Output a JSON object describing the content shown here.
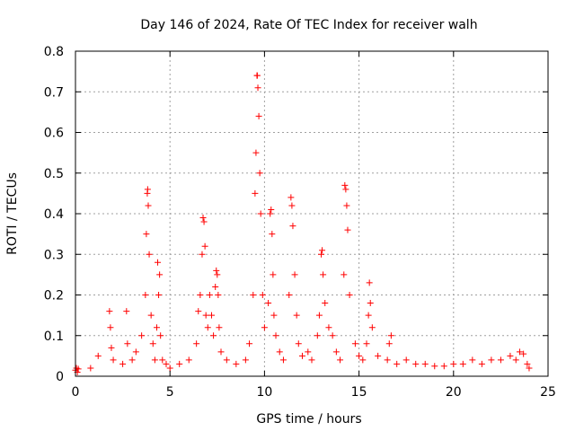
{
  "chart_data": {
    "type": "scatter",
    "title": "Day 146 of 2024, Rate Of TEC Index for receiver walh",
    "xlabel": "GPS time / hours",
    "ylabel": "ROTI / TECUs",
    "xlim": [
      0,
      25
    ],
    "ylim": [
      0,
      0.8
    ],
    "xticks": [
      "0",
      "5",
      "10",
      "15",
      "20",
      "25"
    ],
    "yticks": [
      "0",
      "0.1",
      "0.2",
      "0.3",
      "0.4",
      "0.5",
      "0.6",
      "0.7",
      "0.8"
    ],
    "grid": true,
    "marker": "+",
    "color": "#ff0000",
    "series": [
      {
        "x": [
          0.0,
          0.05,
          0.1,
          0.15,
          0.8,
          1.2,
          1.8,
          1.85,
          1.9,
          2.0,
          2.5,
          2.7,
          2.75,
          3.0,
          3.2,
          3.5,
          3.7,
          3.75,
          3.8,
          3.82,
          3.85,
          3.9,
          4.0,
          4.1,
          4.2,
          4.3,
          4.35,
          4.4,
          4.45,
          4.5,
          4.6,
          4.8,
          5.0,
          5.5,
          6.0,
          6.4,
          6.5,
          6.6,
          6.7,
          6.75,
          6.8,
          6.85,
          6.9,
          7.0,
          7.1,
          7.2,
          7.3,
          7.4,
          7.45,
          7.5,
          7.55,
          7.6,
          7.7,
          8.0,
          8.5,
          9.0,
          9.2,
          9.4,
          9.5,
          9.55,
          9.6,
          9.62,
          9.65,
          9.7,
          9.75,
          9.8,
          9.9,
          10.0,
          10.2,
          10.3,
          10.35,
          10.4,
          10.45,
          10.5,
          10.6,
          10.8,
          11.0,
          11.3,
          11.4,
          11.45,
          11.5,
          11.6,
          11.7,
          11.8,
          12.0,
          12.3,
          12.5,
          12.8,
          12.9,
          13.0,
          13.05,
          13.1,
          13.2,
          13.4,
          13.6,
          13.8,
          14.0,
          14.2,
          14.25,
          14.3,
          14.35,
          14.4,
          14.5,
          14.8,
          15.0,
          15.2,
          15.4,
          15.5,
          15.55,
          15.6,
          15.7,
          16.0,
          16.5,
          16.6,
          16.7,
          17.0,
          17.5,
          18.0,
          18.5,
          19.0,
          19.5,
          20.0,
          20.5,
          21.0,
          21.5,
          22.0,
          22.5,
          23.0,
          23.3,
          23.5,
          23.7,
          23.9,
          24.0
        ],
        "y": [
          0.015,
          0.02,
          0.01,
          0.018,
          0.02,
          0.05,
          0.16,
          0.12,
          0.07,
          0.04,
          0.03,
          0.16,
          0.08,
          0.04,
          0.06,
          0.1,
          0.2,
          0.35,
          0.45,
          0.46,
          0.42,
          0.3,
          0.15,
          0.08,
          0.04,
          0.12,
          0.28,
          0.2,
          0.25,
          0.1,
          0.04,
          0.03,
          0.02,
          0.03,
          0.04,
          0.08,
          0.16,
          0.2,
          0.3,
          0.39,
          0.38,
          0.32,
          0.15,
          0.12,
          0.2,
          0.15,
          0.1,
          0.22,
          0.26,
          0.25,
          0.2,
          0.12,
          0.06,
          0.04,
          0.03,
          0.04,
          0.08,
          0.2,
          0.45,
          0.55,
          0.74,
          0.74,
          0.71,
          0.64,
          0.5,
          0.4,
          0.2,
          0.12,
          0.18,
          0.4,
          0.41,
          0.35,
          0.25,
          0.15,
          0.1,
          0.06,
          0.04,
          0.2,
          0.44,
          0.42,
          0.37,
          0.25,
          0.15,
          0.08,
          0.05,
          0.06,
          0.04,
          0.1,
          0.15,
          0.3,
          0.31,
          0.25,
          0.18,
          0.12,
          0.1,
          0.06,
          0.04,
          0.25,
          0.47,
          0.46,
          0.42,
          0.36,
          0.2,
          0.08,
          0.05,
          0.04,
          0.08,
          0.15,
          0.23,
          0.18,
          0.12,
          0.05,
          0.04,
          0.08,
          0.1,
          0.03,
          0.04,
          0.03,
          0.03,
          0.025,
          0.025,
          0.03,
          0.03,
          0.04,
          0.03,
          0.04,
          0.04,
          0.05,
          0.04,
          0.06,
          0.055,
          0.03,
          0.02
        ]
      }
    ]
  }
}
